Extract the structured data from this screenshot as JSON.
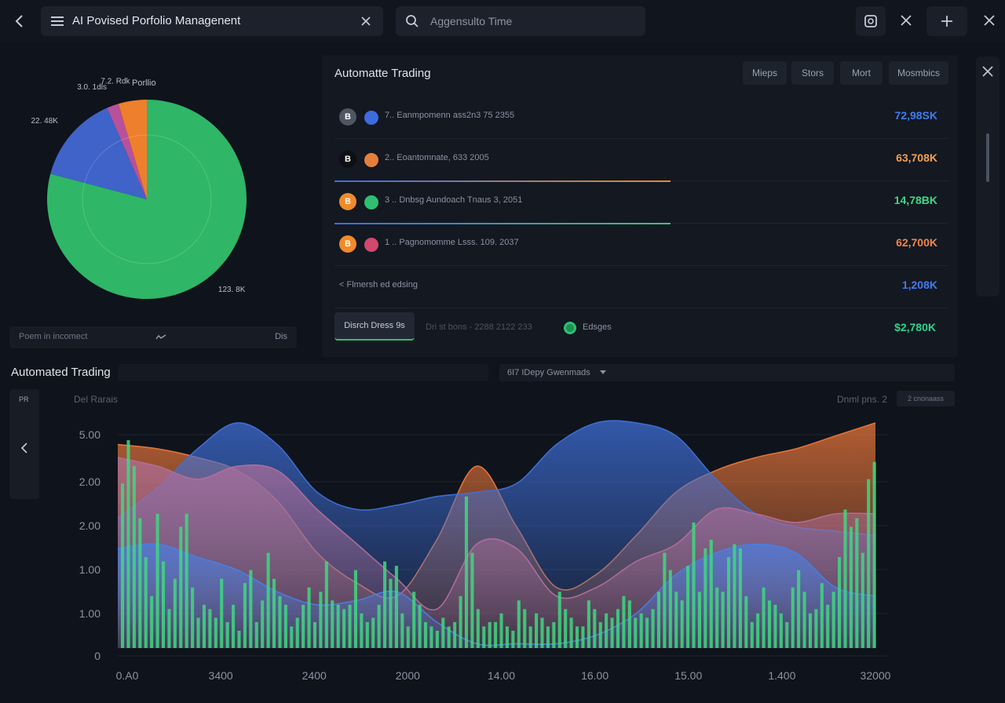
{
  "header": {
    "title": "AI Povised Porfolio Managenent",
    "search_placeholder": "Aggensulto Time"
  },
  "portfolio": {
    "title": "Porllio",
    "slices": [
      {
        "label": "123. 8K",
        "value": 123.8,
        "color": "#2fb667"
      },
      {
        "label": "22. 48K",
        "value": 22.48,
        "color": "#3f63c9"
      },
      {
        "label": "3.0. 1dls",
        "value": 3.0,
        "color": "#b8519c"
      },
      {
        "label": "7.2. Rdk",
        "value": 7.2,
        "color": "#ee7f2d"
      }
    ],
    "footer_text": "Poem in incomect",
    "footer_right": "Dis"
  },
  "trading_panel": {
    "title": "Automatte Trading",
    "tabs": [
      "Mieps",
      "Stors",
      "Mort",
      "Mosmbics"
    ],
    "rows": [
      {
        "badge": "B",
        "badge_color": "#4e5563",
        "dot_color": "#3f6be0",
        "label": "7.. Eanmpomenn ass2n3 75 2355",
        "value": "72,98SK",
        "value_color": "#3f7cf0",
        "line": ""
      },
      {
        "badge": "B",
        "badge_color": "#0d0f14",
        "dot_color": "#e37f3a",
        "label": "2.. Eoantomnate, 633 2005",
        "value": "63,708K",
        "value_color": "#f0a050",
        "line": "#e58a2a"
      },
      {
        "badge": "B",
        "badge_color": "#f08a2a",
        "dot_color": "#2fbf73",
        "label": "3 .. Dnbsg Aundoach Tnaus 3, 2051",
        "value": "14,78BK",
        "value_color": "#3fd882",
        "line": "#3fc275"
      },
      {
        "badge": "B",
        "badge_color": "#f08a2a",
        "dot_color": "#d1496d",
        "label": "1 .. Pagnomomme Lsss. 109. 2037",
        "value": "62,700K",
        "value_color": "#f0864a",
        "line": ""
      },
      {
        "badge": "",
        "badge_color": "",
        "dot_color": "",
        "label": "< Flmersh ed edsing",
        "value": "1,208K",
        "value_color": "#3f7cf0",
        "line": ""
      }
    ],
    "action_button": "Disrch Dress 9s",
    "action_info": "Dri st bons - 2288 2122 233",
    "status_label": "Edsges",
    "status_value": "$2,780K",
    "status_value_color": "#2fd38a"
  },
  "chart_section": {
    "title": "Automated Trading",
    "dropdown": "6I7 IDepy Gwenmads",
    "left_tag": "PR",
    "sublabel": "Del Rarais",
    "right_label": "Dnml pns. 2",
    "right_chip": "2 cnonaass"
  },
  "chart_data": {
    "type": "area",
    "y_ticks": [
      "5.00",
      "2.00",
      "2.00",
      "1.00",
      "1.00",
      "0"
    ],
    "x_ticks": [
      "0.A0",
      "3400",
      "2400",
      "2000",
      "14.00",
      "16.00",
      "15.00",
      "1.400",
      "32000"
    ],
    "ylim": [
      0,
      5
    ],
    "x_count": 20,
    "series": [
      {
        "color": "#e8763a",
        "values": [
          4.7,
          4.6,
          4.4,
          4.1,
          3.4,
          2.2,
          1.5,
          1.2,
          2.5,
          4.2,
          2.8,
          1.4,
          1.7,
          2.6,
          3.6,
          4.1,
          4.4,
          4.6,
          4.9,
          5.2
        ]
      },
      {
        "color": "#3f6fd8",
        "values": [
          3.0,
          3.7,
          4.6,
          5.2,
          4.7,
          3.6,
          3.2,
          3.3,
          3.5,
          3.6,
          3.8,
          4.7,
          5.2,
          5.2,
          4.9,
          3.9,
          3.1,
          2.8,
          2.7,
          2.6
        ]
      },
      {
        "color": "#b06f9a",
        "values": [
          4.4,
          4.2,
          3.9,
          4.2,
          4.1,
          3.2,
          2.4,
          1.6,
          0.9,
          2.4,
          2.3,
          1.2,
          1.4,
          2.0,
          2.4,
          3.2,
          3.1,
          2.9,
          3.1,
          3.1
        ]
      },
      {
        "color": "#4a7ee0",
        "values": [
          2.3,
          2.4,
          2.1,
          1.8,
          1.3,
          1.0,
          1.1,
          1.3,
          0.6,
          0.1,
          0.1,
          0.1,
          0.3,
          0.8,
          1.7,
          2.2,
          2.4,
          2.2,
          1.4,
          1.2
        ]
      }
    ],
    "bars": [
      3.8,
      4.8,
      4.2,
      3.0,
      2.1,
      1.2,
      3.1,
      2.0,
      0.9,
      1.6,
      2.8,
      3.1,
      1.4,
      0.7,
      1.0,
      0.9,
      0.7,
      1.6,
      0.6,
      1.0,
      0.4,
      1.5,
      1.8,
      0.6,
      1.1,
      2.2,
      1.6,
      1.2,
      1.0,
      0.5,
      0.7,
      1.0,
      1.4,
      0.6,
      1.3,
      2.0,
      1.1,
      1.0,
      0.9,
      1.0,
      1.8,
      0.8,
      0.6,
      0.7,
      1.0,
      2.0,
      1.6,
      1.9,
      0.8,
      0.5,
      1.3,
      1.0,
      0.6,
      0.5,
      0.4,
      0.7,
      0.5,
      0.6,
      1.2,
      3.5,
      2.2,
      0.9,
      0.5,
      0.6,
      0.6,
      0.8,
      0.5,
      0.4,
      1.1,
      0.9,
      0.5,
      0.8,
      0.7,
      0.5,
      0.6,
      1.3,
      0.9,
      0.7,
      0.5,
      0.5,
      1.1,
      0.9,
      0.6,
      0.8,
      0.7,
      0.9,
      1.2,
      1.1,
      0.7,
      0.8,
      0.7,
      0.9,
      1.3,
      2.2,
      1.8,
      1.3,
      1.1,
      1.9,
      2.9,
      1.3,
      2.3,
      2.5,
      1.4,
      1.3,
      2.1,
      2.4,
      2.3,
      1.2,
      0.6,
      0.8,
      1.4,
      1.1,
      1.0,
      0.8,
      0.6,
      1.4,
      1.8,
      1.3,
      0.8,
      0.9,
      1.5,
      1.0,
      1.3,
      2.1,
      3.2,
      2.8,
      3.0,
      2.2,
      3.9,
      4.3
    ]
  }
}
